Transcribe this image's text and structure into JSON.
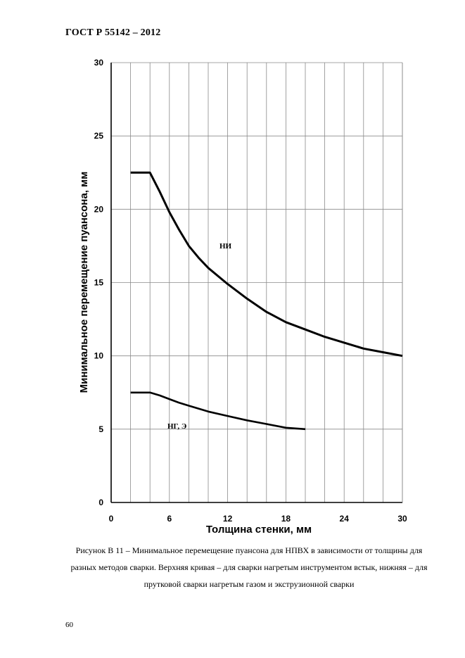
{
  "document": {
    "header": "ГОСТ Р  55142 – 2012",
    "caption": "Рисунок В 11 – Минимальное перемещение пуансона  для НПВХ в зависимости от толщины для разных методов сварки. Верхняя кривая – для сварки нагретым инструментом встык, нижняя – для прутковой сварки нагретым газом и экструзионной сварки",
    "page_number": "60"
  },
  "chart_data": {
    "type": "line",
    "title": "",
    "xlabel": "Толщина стенки, мм",
    "ylabel": "Минимальное перемещение пуансона, мм",
    "xlim": [
      0,
      30
    ],
    "ylim": [
      0,
      30
    ],
    "x_ticks": [
      0,
      6,
      12,
      18,
      24,
      30
    ],
    "y_ticks": [
      0,
      5,
      10,
      15,
      20,
      25,
      30
    ],
    "x_gridlines": [
      0,
      2,
      4,
      6,
      8,
      10,
      12,
      14,
      16,
      18,
      20,
      22,
      24,
      26,
      28,
      30
    ],
    "y_gridlines": [
      0,
      5,
      10,
      15,
      20,
      25,
      30
    ],
    "grid": true,
    "series": [
      {
        "name": "НИ",
        "x": [
          2,
          4,
          5,
          6,
          7,
          8,
          9,
          10,
          12,
          14,
          16,
          18,
          20,
          22,
          24,
          26,
          28,
          30
        ],
        "y": [
          22.5,
          22.5,
          21.2,
          19.8,
          18.6,
          17.5,
          16.7,
          16.0,
          14.9,
          13.9,
          13.0,
          12.3,
          11.8,
          11.3,
          10.9,
          10.5,
          10.25,
          10.0
        ]
      },
      {
        "name": "НГ, Э",
        "x": [
          2,
          4,
          5,
          6,
          7,
          8,
          10,
          12,
          14,
          16,
          18,
          20
        ],
        "y": [
          7.5,
          7.5,
          7.3,
          7.05,
          6.8,
          6.6,
          6.2,
          5.9,
          5.6,
          5.35,
          5.1,
          5.0
        ]
      }
    ]
  }
}
